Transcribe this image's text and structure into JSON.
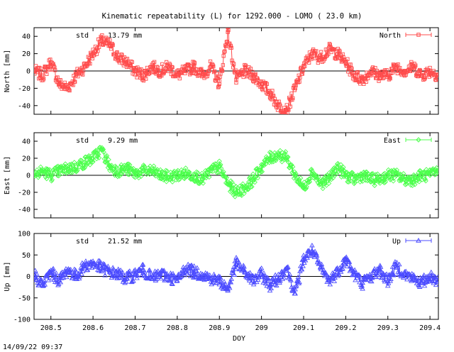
{
  "chart_data": {
    "type": "line",
    "title": "Kinematic repeatability (L) for 1292.000 - LOMO  ( 23.0 km)",
    "xlabel": "DOY",
    "footer": "14/09/22 09:37",
    "x_range": [
      208.46,
      209.42
    ],
    "x_ticks": [
      208.5,
      208.6,
      208.7,
      208.8,
      208.9,
      209,
      209.1,
      209.2,
      209.3,
      209.4
    ],
    "x_tick_labels": [
      "208.5",
      "208.6",
      "208.7",
      "208.8",
      "208.9",
      "209",
      "209.1",
      "209.2",
      "209.3",
      "209.4"
    ],
    "panels": [
      {
        "name": "North",
        "ylabel": "North [mm]",
        "legend": "North",
        "std_label": "std",
        "std_value": "13.79 mm",
        "color": "#ff4c4c",
        "marker": "square",
        "ylim": [
          -50,
          50
        ],
        "y_ticks": [
          40,
          20,
          0,
          -20,
          -40
        ],
        "y_tick_labels": [
          "40",
          "20",
          "0",
          "-20",
          "-40"
        ],
        "series_x": [
          208.46,
          208.48,
          208.5,
          208.52,
          208.54,
          208.56,
          208.58,
          208.6,
          208.62,
          208.64,
          208.66,
          208.68,
          208.7,
          208.72,
          208.74,
          208.76,
          208.78,
          208.8,
          208.82,
          208.84,
          208.86,
          208.88,
          208.9,
          208.92,
          208.94,
          208.96,
          208.98,
          209.0,
          209.02,
          209.04,
          209.06,
          209.08,
          209.1,
          209.12,
          209.14,
          209.16,
          209.18,
          209.2,
          209.22,
          209.24,
          209.26,
          209.28,
          209.3,
          209.32,
          209.34,
          209.36,
          209.38,
          209.4,
          209.42
        ],
        "series_y": [
          0,
          -5,
          10,
          -15,
          -20,
          -5,
          5,
          20,
          35,
          30,
          15,
          10,
          0,
          -5,
          5,
          0,
          5,
          -5,
          0,
          5,
          -5,
          5,
          -15,
          45,
          -10,
          0,
          -5,
          -15,
          -25,
          -40,
          -45,
          -20,
          5,
          20,
          15,
          25,
          20,
          10,
          -5,
          -10,
          0,
          -5,
          -5,
          5,
          0,
          5,
          -5,
          0,
          -5
        ]
      },
      {
        "name": "East",
        "ylabel": "East [mm]",
        "legend": "East",
        "std_label": "std",
        "std_value": "9.29 mm",
        "color": "#4cff4c",
        "marker": "diamond",
        "ylim": [
          -50,
          50
        ],
        "y_ticks": [
          40,
          20,
          0,
          -20,
          -40
        ],
        "y_tick_labels": [
          "40",
          "20",
          "0",
          "-20",
          "-40"
        ],
        "series_x": [
          208.46,
          208.48,
          208.5,
          208.52,
          208.54,
          208.56,
          208.58,
          208.6,
          208.62,
          208.64,
          208.66,
          208.68,
          208.7,
          208.72,
          208.74,
          208.76,
          208.78,
          208.8,
          208.82,
          208.84,
          208.86,
          208.88,
          208.9,
          208.92,
          208.94,
          208.96,
          208.98,
          209.0,
          209.02,
          209.04,
          209.06,
          209.08,
          209.1,
          209.12,
          209.14,
          209.16,
          209.18,
          209.2,
          209.22,
          209.24,
          209.26,
          209.28,
          209.3,
          209.32,
          209.34,
          209.36,
          209.38,
          209.4,
          209.42
        ],
        "series_y": [
          0,
          5,
          0,
          5,
          8,
          10,
          15,
          20,
          30,
          10,
          5,
          8,
          2,
          5,
          5,
          0,
          -2,
          0,
          2,
          0,
          -5,
          5,
          10,
          -10,
          -20,
          -15,
          -5,
          10,
          20,
          25,
          20,
          0,
          -15,
          5,
          -10,
          -5,
          10,
          0,
          -5,
          0,
          -5,
          -5,
          0,
          0,
          -5,
          -5,
          0,
          0,
          5
        ]
      },
      {
        "name": "Up",
        "ylabel": "Up [mm]",
        "legend": "Up",
        "std_label": "std",
        "std_value": "21.52 mm",
        "color": "#4c4cff",
        "marker": "triangle",
        "ylim": [
          -100,
          100
        ],
        "y_ticks": [
          100,
          50,
          0,
          -50,
          -100
        ],
        "y_tick_labels": [
          "100",
          "50",
          "0",
          "-50",
          "-100"
        ],
        "series_x": [
          208.46,
          208.48,
          208.5,
          208.52,
          208.54,
          208.56,
          208.58,
          208.6,
          208.62,
          208.64,
          208.66,
          208.68,
          208.7,
          208.72,
          208.74,
          208.76,
          208.78,
          208.8,
          208.82,
          208.84,
          208.86,
          208.88,
          208.9,
          208.92,
          208.94,
          208.96,
          208.98,
          209.0,
          209.02,
          209.04,
          209.06,
          209.08,
          209.1,
          209.12,
          209.14,
          209.16,
          209.18,
          209.2,
          209.22,
          209.24,
          209.26,
          209.28,
          209.3,
          209.32,
          209.34,
          209.36,
          209.38,
          209.4,
          209.42
        ],
        "series_y": [
          5,
          -20,
          10,
          -10,
          15,
          0,
          25,
          30,
          20,
          10,
          5,
          -5,
          5,
          15,
          -5,
          5,
          0,
          -10,
          20,
          10,
          5,
          -5,
          -10,
          -30,
          30,
          10,
          -10,
          5,
          -20,
          -5,
          20,
          -40,
          40,
          60,
          20,
          -10,
          10,
          40,
          5,
          -15,
          0,
          15,
          -10,
          25,
          5,
          -5,
          -15,
          0,
          -10
        ]
      }
    ]
  }
}
